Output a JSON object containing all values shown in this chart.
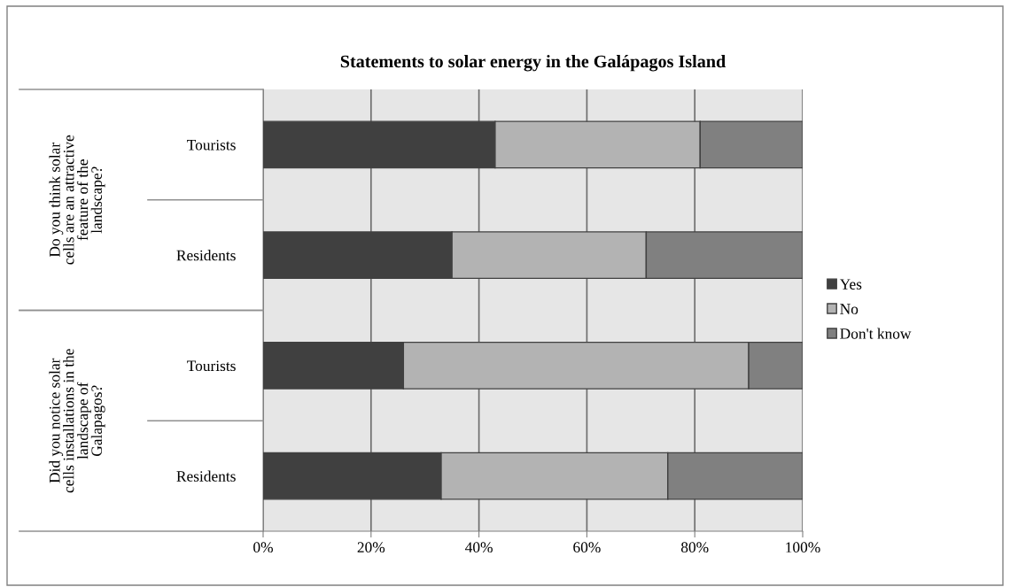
{
  "chart_data": {
    "type": "bar",
    "orientation": "horizontal",
    "stacked": true,
    "title": "Statements to solar energy in the Galápagos Island",
    "categories": [
      "Tourists",
      "Residents",
      "Tourists",
      "Residents"
    ],
    "series": [
      {
        "name": "Yes",
        "color": "#404040",
        "values": [
          43,
          35,
          26,
          33
        ]
      },
      {
        "name": "No",
        "color": "#b3b3b3",
        "values": [
          38,
          36,
          64,
          42
        ]
      },
      {
        "name": "Don't know",
        "color": "#808080",
        "values": [
          19,
          29,
          10,
          25
        ]
      }
    ],
    "xlim": [
      0,
      100
    ],
    "xticks": [
      {
        "value": 0,
        "label": "0%"
      },
      {
        "value": 20,
        "label": "20%"
      },
      {
        "value": 40,
        "label": "40%"
      },
      {
        "value": 60,
        "label": "60%"
      },
      {
        "value": 80,
        "label": "80%"
      },
      {
        "value": 100,
        "label": "100%"
      }
    ],
    "grid": "x",
    "legend": "right",
    "annotations": [
      "Do you think solar\ncells are an attractive\nfeature of the\nlandscape?",
      "Did you notice solar\ncells installations in the\nlandscape of\nGalapagos?"
    ]
  }
}
